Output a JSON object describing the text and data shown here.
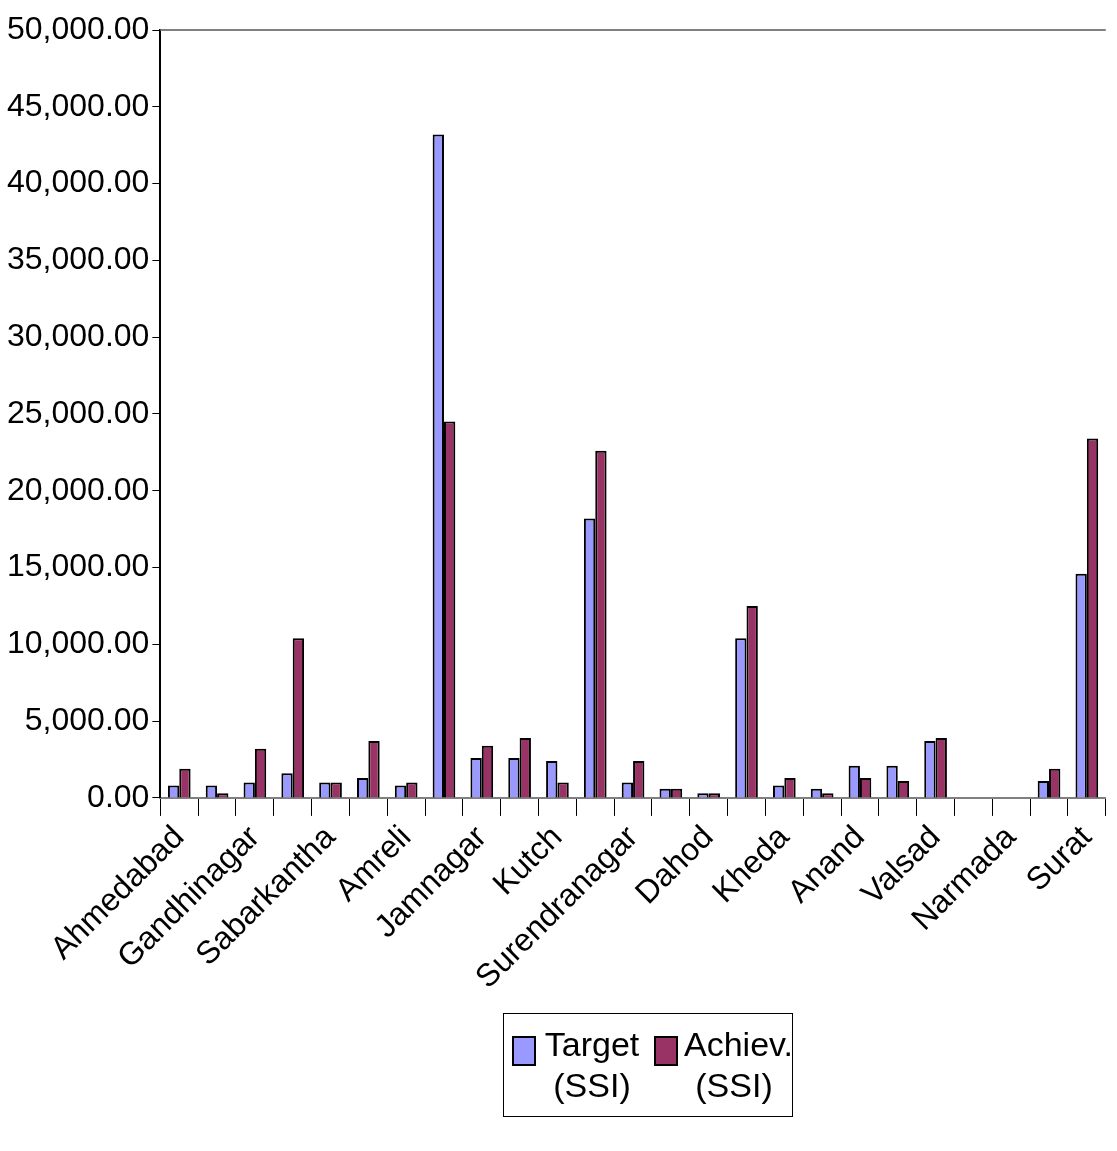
{
  "chart_data": {
    "type": "bar",
    "categories": [
      "Ahmedabad",
      null,
      "Gandhinagar",
      null,
      "Sabarkantha",
      null,
      "Amreli",
      null,
      "Jamnagar",
      null,
      "Kutch",
      null,
      "Surendranagar",
      null,
      "Dahod",
      null,
      "Kheda",
      null,
      "Anand",
      null,
      "Valsad",
      null,
      "Narmada",
      null,
      "Surat"
    ],
    "series": [
      {
        "name": "Target (SSI)",
        "color": "#9999ff",
        "values": [
          800,
          800,
          1000,
          1600,
          1000,
          1300,
          800,
          43200,
          2600,
          2600,
          2400,
          18200,
          1000,
          600,
          300,
          10400,
          800,
          600,
          2100,
          2100,
          3700,
          0,
          0,
          1100,
          14600
        ]
      },
      {
        "name": "Achiev. (SSI)",
        "color": "#993366",
        "values": [
          1900,
          300,
          3200,
          10400,
          1000,
          3700,
          1000,
          24500,
          3400,
          3900,
          1000,
          22600,
          2400,
          600,
          300,
          12500,
          1300,
          300,
          1300,
          1100,
          3900,
          0,
          0,
          1900,
          23400
        ]
      }
    ],
    "ylim": [
      0,
      50000
    ],
    "yticks": [
      {
        "value": 0,
        "label": "0.00"
      },
      {
        "value": 5000,
        "label": "5,000.00"
      },
      {
        "value": 10000,
        "label": "10,000.00"
      },
      {
        "value": 15000,
        "label": "15,000.00"
      },
      {
        "value": 20000,
        "label": "20,000.00"
      },
      {
        "value": 25000,
        "label": "25,000.00"
      },
      {
        "value": 30000,
        "label": "30,000.00"
      },
      {
        "value": 35000,
        "label": "35,000.00"
      },
      {
        "value": 40000,
        "label": "40,000.00"
      },
      {
        "value": 45000,
        "label": "45,000.00"
      },
      {
        "value": 50000,
        "label": "50,000.00"
      }
    ],
    "legend": "bottom"
  }
}
